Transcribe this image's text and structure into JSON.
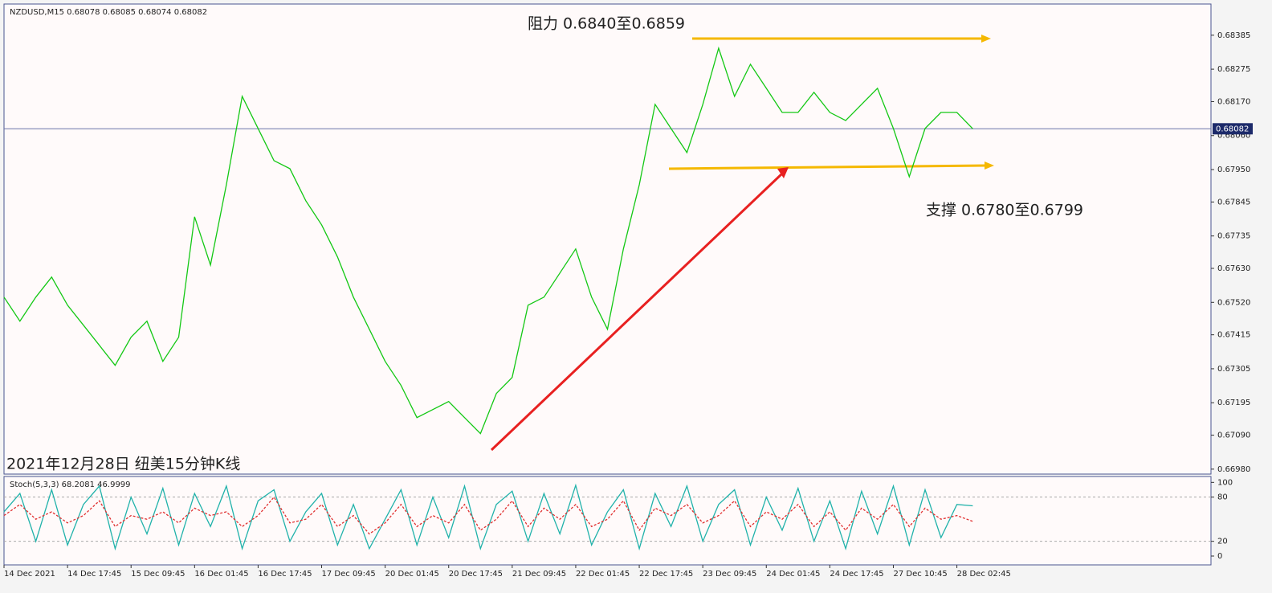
{
  "chart_data": [
    {
      "type": "line",
      "title": "NZDUSD,M15  0.68078 0.68085 0.68074 0.68082",
      "annotations": [
        "阻力 0.6840至0.6859",
        "支撑 0.6780至0.6799",
        "2021年12月28日 纽美15分钟K线"
      ],
      "current_price": 0.68082,
      "xlim": [
        0,
        76
      ],
      "xticks": [
        {
          "value": 0,
          "label": "14 Dec 2021"
        },
        {
          "value": 4,
          "label": "14 Dec 17:45"
        },
        {
          "value": 8,
          "label": "15 Dec 09:45"
        },
        {
          "value": 12,
          "label": "16 Dec 01:45"
        },
        {
          "value": 16,
          "label": "16 Dec 17:45"
        },
        {
          "value": 20,
          "label": "17 Dec 09:45"
        },
        {
          "value": 24,
          "label": "20 Dec 01:45"
        },
        {
          "value": 28,
          "label": "20 Dec 17:45"
        },
        {
          "value": 32,
          "label": "21 Dec 09:45"
        },
        {
          "value": 36,
          "label": "22 Dec 01:45"
        },
        {
          "value": 40,
          "label": "22 Dec 17:45"
        },
        {
          "value": 44,
          "label": "23 Dec 09:45"
        },
        {
          "value": 48,
          "label": "24 Dec 01:45"
        },
        {
          "value": 52,
          "label": "24 Dec 17:45"
        },
        {
          "value": 56,
          "label": "27 Dec 10:45"
        },
        {
          "value": 60,
          "label": "28 Dec 02:45"
        }
      ],
      "ylim": [
        0.66964,
        0.68486
      ],
      "yticks": [
        0.68385,
        0.68275,
        {
          "value": 0.6817,
          "label": "0.68170"
        },
        {
          "value": 0.6806,
          "label": "0.68060"
        },
        {
          "value": 0.6795,
          "label": "0.67950"
        },
        0.67845,
        0.67735,
        {
          "value": 0.6763,
          "label": "0.67630"
        },
        {
          "value": 0.6752,
          "label": "0.67520"
        },
        0.67415,
        0.67305,
        0.67195,
        {
          "value": 0.6709,
          "label": "0.67090"
        },
        {
          "value": 0.6698,
          "label": "0.66980"
        }
      ],
      "series": [
        {
          "color": "#14c814",
          "values": [
            0.67537,
            0.67459,
            0.67537,
            0.67602,
            0.67511,
            0.67446,
            0.67381,
            0.67316,
            0.67407,
            0.67459,
            0.67329,
            0.67407,
            0.67797,
            0.67641,
            0.67901,
            0.68187,
            0.68083,
            0.67979,
            0.67953,
            0.67849,
            0.67771,
            0.67667,
            0.67537,
            0.67433,
            0.67329,
            0.67251,
            0.67147,
            0.67173,
            0.67199,
            0.67147,
            0.67095,
            0.67225,
            0.67277,
            0.67511,
            0.67537,
            0.67615,
            0.67693,
            0.67537,
            0.67433,
            0.67693,
            0.67901,
            0.68161,
            0.68083,
            0.68005,
            0.68161,
            0.68343,
            0.68187,
            0.68291,
            0.68213,
            0.68135,
            0.68135,
            0.682,
            0.68135,
            0.68109,
            0.68161,
            0.68213,
            0.68083,
            0.67927,
            0.68083,
            0.68135,
            0.68135,
            0.68082
          ]
        }
      ]
    },
    {
      "type": "line",
      "title": "Stoch(5,3,3) 68.2081 46.9999",
      "xlim": [
        0,
        76
      ],
      "ylim": [
        -12,
        108
      ],
      "yticks": [
        100,
        80,
        20,
        0
      ],
      "levels": [
        80,
        20
      ],
      "series": [
        {
          "color": "#20b2aa",
          "values": [
            60,
            85,
            20,
            90,
            15,
            70,
            95,
            10,
            80,
            30,
            92,
            15,
            85,
            40,
            95,
            10,
            75,
            90,
            20,
            60,
            85,
            15,
            70,
            10,
            50,
            90,
            15,
            80,
            25,
            95,
            10,
            70,
            88,
            20,
            85,
            30,
            96,
            15,
            60,
            90,
            10,
            85,
            40,
            95,
            20,
            70,
            90,
            15,
            80,
            35,
            92,
            20,
            75,
            10,
            88,
            30,
            95,
            15,
            90,
            25,
            70,
            68.2081
          ]
        },
        {
          "color": "#e03030",
          "values": [
            55,
            70,
            50,
            60,
            45,
            55,
            75,
            40,
            55,
            50,
            60,
            45,
            65,
            55,
            60,
            40,
            55,
            80,
            45,
            50,
            70,
            40,
            55,
            30,
            45,
            70,
            40,
            55,
            45,
            70,
            35,
            50,
            75,
            40,
            65,
            50,
            70,
            40,
            50,
            75,
            35,
            65,
            55,
            70,
            45,
            55,
            75,
            40,
            60,
            50,
            70,
            40,
            60,
            35,
            65,
            50,
            70,
            40,
            65,
            50,
            55,
            46.9999
          ]
        }
      ]
    }
  ]
}
